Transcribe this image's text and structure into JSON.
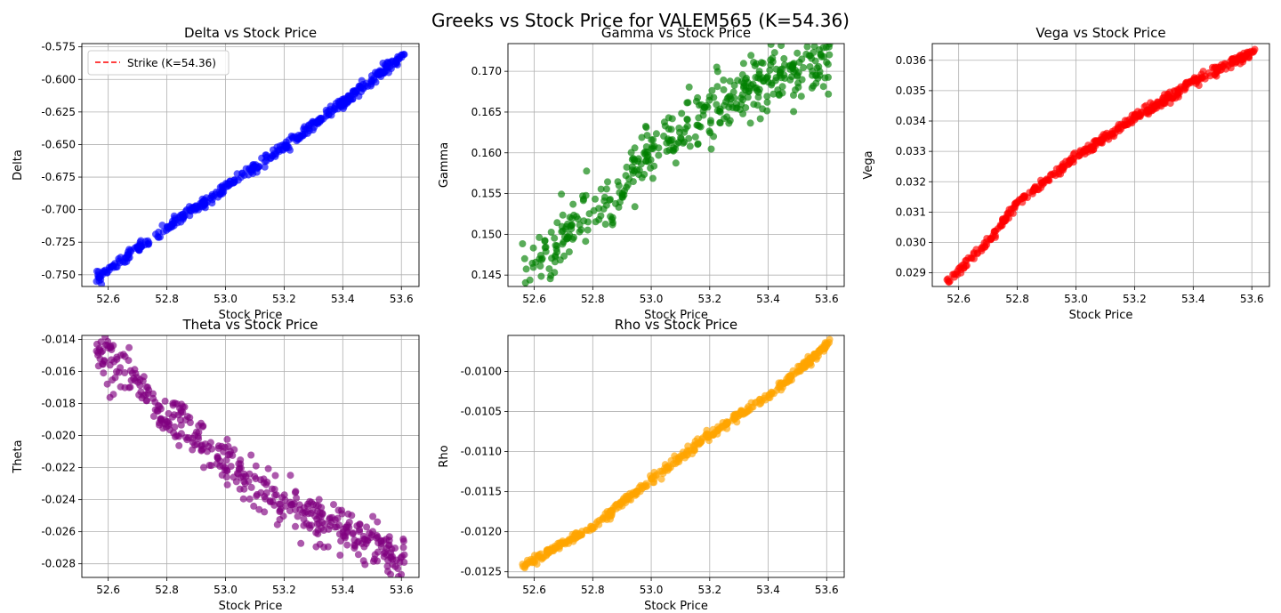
{
  "figure": {
    "suptitle": "Greeks vs Stock Price for VALEM565 (K=54.36)"
  },
  "chart_data": [
    {
      "id": "delta",
      "type": "scatter",
      "title": "Delta vs Stock Price",
      "xlabel": "Stock Price",
      "ylabel": "Delta",
      "color": "#0000ff",
      "noise": 0.002,
      "xlim": [
        52.51,
        53.66
      ],
      "ylim": [
        -0.759,
        -0.5725
      ],
      "xticks": [
        "52.6",
        "52.8",
        "53.0",
        "53.2",
        "53.4",
        "53.6"
      ],
      "yticks": [
        "-0.575",
        "-0.600",
        "-0.625",
        "-0.650",
        "-0.675",
        "-0.700",
        "-0.725",
        "-0.750"
      ],
      "curve": [
        [
          52.56,
          -0.753
        ],
        [
          52.8,
          -0.714
        ],
        [
          53.0,
          -0.683
        ],
        [
          53.2,
          -0.652
        ],
        [
          53.44,
          -0.611
        ],
        [
          53.61,
          -0.58
        ]
      ],
      "legend": {
        "label": "Strike (K=54.36)",
        "color": "#ff0000",
        "position": "upper left"
      }
    },
    {
      "id": "gamma",
      "type": "scatter",
      "title": "Gamma vs Stock Price",
      "xlabel": "Stock Price",
      "ylabel": "Gamma",
      "color": "#008000",
      "noise": 0.0018,
      "xlim": [
        52.51,
        53.66
      ],
      "ylim": [
        0.1436,
        0.1734
      ],
      "xticks": [
        "52.6",
        "52.8",
        "53.0",
        "53.2",
        "53.4",
        "53.6"
      ],
      "yticks": [
        "0.145",
        "0.150",
        "0.155",
        "0.160",
        "0.165",
        "0.170"
      ],
      "curve": [
        [
          52.56,
          0.1445
        ],
        [
          52.75,
          0.1515
        ],
        [
          52.9,
          0.1545
        ],
        [
          53.0,
          0.16
        ],
        [
          53.2,
          0.1655
        ],
        [
          53.4,
          0.169
        ],
        [
          53.61,
          0.171
        ]
      ]
    },
    {
      "id": "vega",
      "type": "scatter",
      "title": "Vega vs Stock Price",
      "xlabel": "Stock Price",
      "ylabel": "Vega",
      "color": "#ff0000",
      "noise": 8e-05,
      "xlim": [
        52.51,
        53.66
      ],
      "ylim": [
        0.02855,
        0.03655
      ],
      "xticks": [
        "52.6",
        "52.8",
        "53.0",
        "53.2",
        "53.4",
        "53.6"
      ],
      "yticks": [
        "0.029",
        "0.030",
        "0.031",
        "0.032",
        "0.033",
        "0.034",
        "0.035",
        "0.036"
      ],
      "curve": [
        [
          52.56,
          0.0287
        ],
        [
          52.7,
          0.03
        ],
        [
          52.8,
          0.0313
        ],
        [
          53.0,
          0.0328
        ],
        [
          53.2,
          0.0341
        ],
        [
          53.44,
          0.0355
        ],
        [
          53.61,
          0.0363
        ]
      ]
    },
    {
      "id": "theta",
      "type": "scatter",
      "title": "Theta vs Stock Price",
      "xlabel": "Stock Price",
      "ylabel": "Theta",
      "color": "#800080",
      "noise": 0.0007,
      "xlim": [
        52.51,
        53.66
      ],
      "ylim": [
        -0.02885,
        -0.01375
      ],
      "xticks": [
        "52.6",
        "52.8",
        "53.0",
        "53.2",
        "53.4",
        "53.6"
      ],
      "yticks": [
        "-0.014",
        "-0.016",
        "-0.018",
        "-0.020",
        "-0.022",
        "-0.024",
        "-0.026",
        "-0.028"
      ],
      "curve": [
        [
          52.56,
          -0.0147
        ],
        [
          52.7,
          -0.0165
        ],
        [
          52.8,
          -0.0187
        ],
        [
          53.0,
          -0.0217
        ],
        [
          53.2,
          -0.0242
        ],
        [
          53.44,
          -0.0262
        ],
        [
          53.61,
          -0.028
        ]
      ]
    },
    {
      "id": "rho",
      "type": "scatter",
      "title": "Rho vs Stock Price",
      "xlabel": "Stock Price",
      "ylabel": "Rho",
      "color": "#ffa500",
      "noise": 3e-05,
      "xlim": [
        52.51,
        53.66
      ],
      "ylim": [
        -0.01257,
        -0.00955
      ],
      "xticks": [
        "52.6",
        "52.8",
        "53.0",
        "53.2",
        "53.4",
        "53.6"
      ],
      "yticks": [
        "-0.0100",
        "-0.0105",
        "-0.0110",
        "-0.0115",
        "-0.0120",
        "-0.0125"
      ],
      "curve": [
        [
          52.56,
          -0.01243
        ],
        [
          52.8,
          -0.01195
        ],
        [
          53.0,
          -0.01135
        ],
        [
          53.2,
          -0.0108
        ],
        [
          53.44,
          -0.0102
        ],
        [
          53.61,
          -0.00965
        ]
      ]
    }
  ]
}
